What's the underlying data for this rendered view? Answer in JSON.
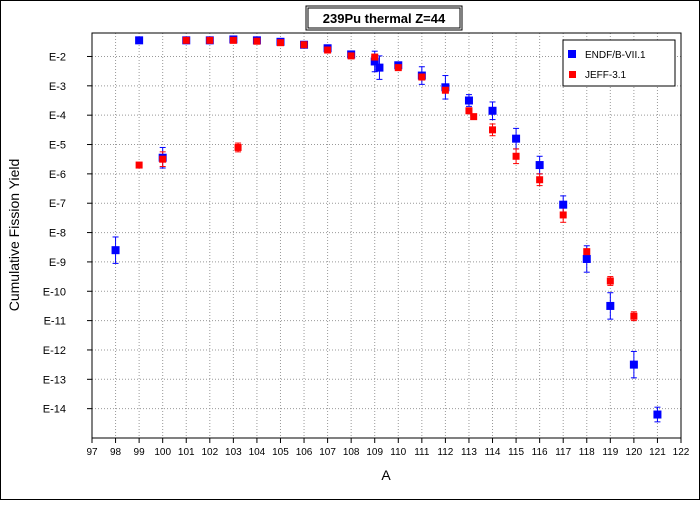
{
  "chart_data": {
    "type": "scatter",
    "title": "239Pu thermal Z=44",
    "xlabel": "A",
    "ylabel": "Cumulative Fission Yield",
    "xlim": [
      97,
      122
    ],
    "ylim_log10": [
      -15,
      -1.2
    ],
    "x_ticks": [
      97,
      98,
      99,
      100,
      101,
      102,
      103,
      104,
      105,
      106,
      107,
      108,
      109,
      110,
      111,
      112,
      113,
      114,
      115,
      116,
      117,
      118,
      119,
      120,
      121,
      122
    ],
    "y_ticks": [
      {
        "log10": -2,
        "label": "E-2"
      },
      {
        "log10": -3,
        "label": "E-3"
      },
      {
        "log10": -4,
        "label": "E-4"
      },
      {
        "log10": -5,
        "label": "E-5"
      },
      {
        "log10": -6,
        "label": "E-6"
      },
      {
        "log10": -7,
        "label": "E-7"
      },
      {
        "log10": -8,
        "label": "E-8"
      },
      {
        "log10": -9,
        "label": "E-9"
      },
      {
        "log10": -10,
        "label": "E-10"
      },
      {
        "log10": -11,
        "label": "E-11"
      },
      {
        "log10": -12,
        "label": "E-12"
      },
      {
        "log10": -13,
        "label": "E-13"
      },
      {
        "log10": -14,
        "label": "E-14"
      }
    ],
    "grid": true,
    "legend_position": "top-right",
    "series": [
      {
        "name": "ENDF/B-VII.1",
        "color": "#0000ff",
        "marker": "square",
        "points": [
          {
            "x": 98,
            "log10y": -8.6,
            "err_log10": 0.45
          },
          {
            "x": 99,
            "log10y": -1.45
          },
          {
            "x": 100,
            "log10y": -5.45,
            "err_log10": 0.35
          },
          {
            "x": 101,
            "log10y": -1.45
          },
          {
            "x": 102,
            "log10y": -1.45
          },
          {
            "x": 103,
            "log10y": -1.42
          },
          {
            "x": 104,
            "log10y": -1.45
          },
          {
            "x": 105,
            "log10y": -1.5
          },
          {
            "x": 106,
            "log10y": -1.6
          },
          {
            "x": 107,
            "log10y": -1.72
          },
          {
            "x": 108,
            "log10y": -1.93
          },
          {
            "x": 109,
            "log10y": -2.17,
            "err_log10": 0.35
          },
          {
            "x": 109.2,
            "log10y": -2.38,
            "err_log10": 0.4
          },
          {
            "x": 110,
            "log10y": -2.3
          },
          {
            "x": 111,
            "log10y": -2.65,
            "err_log10": 0.3
          },
          {
            "x": 112,
            "log10y": -3.05,
            "err_log10": 0.4
          },
          {
            "x": 113,
            "log10y": -3.5,
            "err_log10": 0.2
          },
          {
            "x": 114,
            "log10y": -3.85,
            "err_log10": 0.3
          },
          {
            "x": 115,
            "log10y": -4.8,
            "err_log10": 0.35
          },
          {
            "x": 116,
            "log10y": -5.7,
            "err_log10": 0.3
          },
          {
            "x": 117,
            "log10y": -7.05,
            "err_log10": 0.3
          },
          {
            "x": 118,
            "log10y": -8.9,
            "err_log10": 0.45
          },
          {
            "x": 119,
            "log10y": -10.5,
            "err_log10": 0.45
          },
          {
            "x": 120,
            "log10y": -12.5,
            "err_log10": 0.45
          },
          {
            "x": 121,
            "log10y": -14.2,
            "err_log10": 0.25
          }
        ]
      },
      {
        "name": "JEFF-3.1",
        "color": "#ff0000",
        "marker": "square",
        "points": [
          {
            "x": 99,
            "log10y": -5.7
          },
          {
            "x": 100,
            "log10y": -5.5,
            "err_log10": 0.25
          },
          {
            "x": 101,
            "log10y": -1.45
          },
          {
            "x": 102,
            "log10y": -1.45
          },
          {
            "x": 103,
            "log10y": -1.45
          },
          {
            "x": 103.2,
            "log10y": -5.1,
            "err_log10": 0.15
          },
          {
            "x": 104,
            "log10y": -1.48
          },
          {
            "x": 105,
            "log10y": -1.53
          },
          {
            "x": 106,
            "log10y": -1.6
          },
          {
            "x": 107,
            "log10y": -1.78
          },
          {
            "x": 108,
            "log10y": -1.98
          },
          {
            "x": 109,
            "log10y": -2.02
          },
          {
            "x": 110,
            "log10y": -2.38
          },
          {
            "x": 111,
            "log10y": -2.7
          },
          {
            "x": 112,
            "log10y": -3.15
          },
          {
            "x": 113,
            "log10y": -3.85
          },
          {
            "x": 113.2,
            "log10y": -4.05
          },
          {
            "x": 114,
            "log10y": -4.5,
            "err_log10": 0.2
          },
          {
            "x": 115,
            "log10y": -5.4,
            "err_log10": 0.25
          },
          {
            "x": 116,
            "log10y": -6.2,
            "err_log10": 0.2
          },
          {
            "x": 117,
            "log10y": -7.4,
            "err_log10": 0.25
          },
          {
            "x": 118,
            "log10y": -8.65
          },
          {
            "x": 119,
            "log10y": -9.65,
            "err_log10": 0.15
          },
          {
            "x": 120,
            "log10y": -10.85,
            "err_log10": 0.15
          }
        ]
      }
    ]
  }
}
